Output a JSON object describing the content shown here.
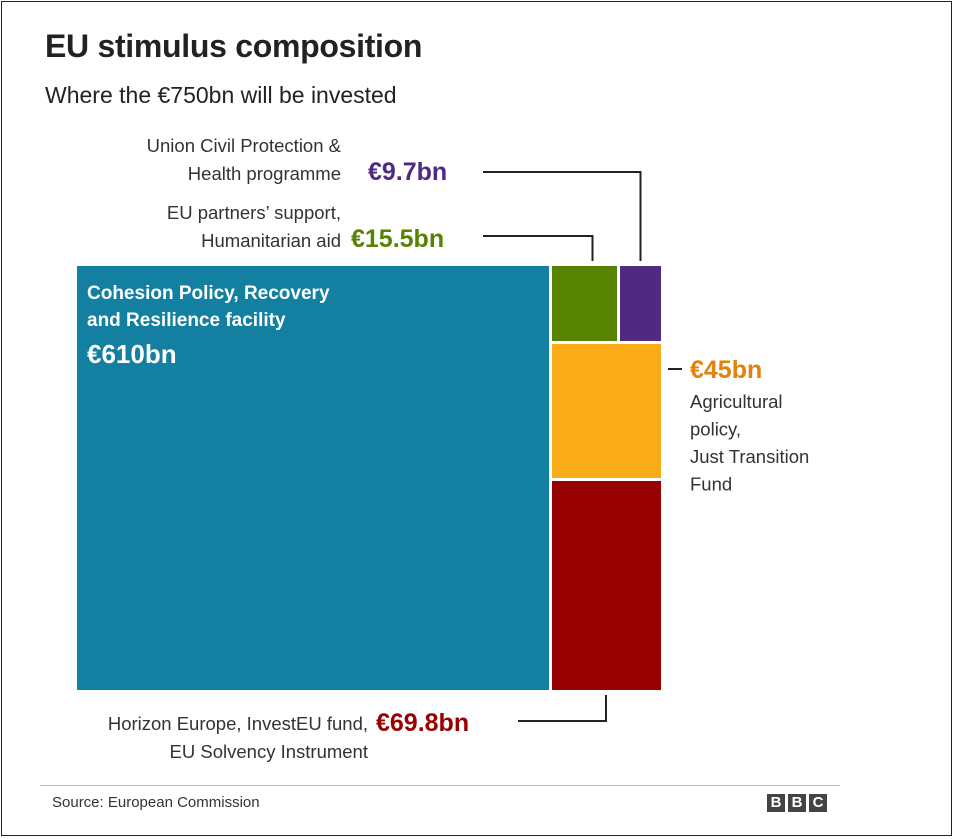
{
  "header": {
    "title": "EU stimulus composition",
    "subtitle": "Where the €750bn will be invested"
  },
  "footer": {
    "source": "Source: European Commission",
    "logo": [
      "B",
      "B",
      "C"
    ]
  },
  "chart_data": {
    "type": "treemap",
    "title": "EU stimulus composition",
    "subtitle": "Where the €750bn will be invested",
    "total": 750,
    "unit": "€bn",
    "items": [
      {
        "id": "cohesion",
        "label_lines": [
          "Cohesion Policy, Recovery",
          "and Resilience facility"
        ],
        "value": 610,
        "value_label": "€610bn",
        "color": "#1380A1"
      },
      {
        "id": "partners",
        "label_lines": [
          "EU partners’ support,",
          "Humanitarian aid"
        ],
        "value": 15.5,
        "value_label": "€15.5bn",
        "color": "#588300"
      },
      {
        "id": "civil",
        "label_lines": [
          "Union Civil Protection &",
          "Health programme"
        ],
        "value": 9.7,
        "value_label": "€9.7bn",
        "color": "#4F2A83"
      },
      {
        "id": "agri",
        "label_lines": [
          "Agricultural",
          "policy,",
          "Just Transition",
          "Fund"
        ],
        "value": 45,
        "value_label": "€45bn",
        "color": "#FAAB18"
      },
      {
        "id": "horizon",
        "label_lines": [
          "Horizon Europe, InvestEU fund,",
          "EU Solvency Instrument"
        ],
        "value": 69.8,
        "value_label": "€69.8bn",
        "color": "#990000"
      }
    ],
    "value_label_colors": {
      "cohesion": "#ffffff",
      "partners": "#588300",
      "civil": "#4F2A83",
      "agri": "#E3820A",
      "horizon": "#990000"
    }
  }
}
